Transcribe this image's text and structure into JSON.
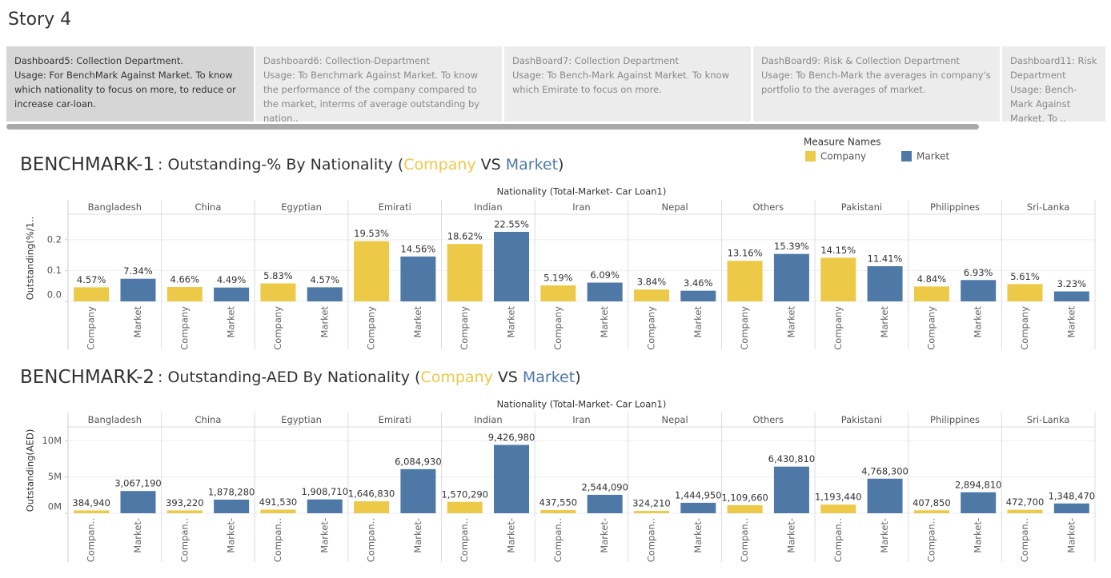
{
  "story_title": "Story 4",
  "tabs": [
    {
      "title": "Dashboard5: Collection Department.",
      "usage": "Usage: For BenchMark Against Market. To know which nationality to focus on more, to reduce or increase car-loan."
    },
    {
      "title": "Dashboard6: Collection-Department",
      "usage": "Usage: To Benchmark Against Market. To know the performance of the company compared to the market, interms of average outstanding by nation.."
    },
    {
      "title": "DashBoard7: Collection Department",
      "usage": "Usage: To Bench-Mark Against Market. To know which Emirate to focus on more."
    },
    {
      "title": "DashBoard9: Risk & Collection Department",
      "usage": "Usage: To Bench-Mark the averages in company's portfolio to the averages of market."
    },
    {
      "title": "Dashboard11: Risk Department",
      "usage": "Usage: Bench-Mark Against Market. To .."
    }
  ],
  "legend_title": "Measure Names",
  "chart_data": [
    {
      "type": "bar",
      "title": "BENCHMARK-1",
      "subtitle_prefix": ": Outstanding-% By Nationality (",
      "subtitle_join": "VS",
      "subtitle_suffix": ")",
      "x_group_label": "Nationality (Total-Market- Car Loan1)",
      "y_label": "Outstanding(%/1..",
      "categories": [
        "Bangladesh",
        "China",
        "Egyptian",
        "Emirati",
        "Indian",
        "Iran",
        "Nepal",
        "Others",
        "Pakistani",
        "Philippines",
        "Sri-Lanka"
      ],
      "sub_labels": [
        "Company",
        "Market"
      ],
      "series": [
        {
          "name": "Company",
          "color": "#edc948",
          "values": [
            0.0457,
            0.0466,
            0.0583,
            0.1953,
            0.1862,
            0.0519,
            0.0384,
            0.1316,
            0.1415,
            0.0484,
            0.0561
          ],
          "value_labels": [
            "4.57%",
            "4.66%",
            "5.83%",
            "19.53%",
            "18.62%",
            "5.19%",
            "3.84%",
            "13.16%",
            "14.15%",
            "4.84%",
            "5.61%"
          ]
        },
        {
          "name": "Market",
          "color": "#4e79a7",
          "values": [
            0.0734,
            0.0449,
            0.0457,
            0.1456,
            0.2255,
            0.0609,
            0.0346,
            0.1539,
            0.1141,
            0.0693,
            0.0323
          ],
          "value_labels": [
            "7.34%",
            "4.49%",
            "4.57%",
            "14.56%",
            "22.55%",
            "6.09%",
            "3.46%",
            "15.39%",
            "11.41%",
            "6.93%",
            "3.23%"
          ]
        }
      ],
      "ylim": [
        0,
        0.28
      ],
      "yticks": [
        {
          "value": 0,
          "label": "0.0"
        },
        0.1,
        0.2
      ],
      "grid": true
    },
    {
      "type": "bar",
      "title": "BENCHMARK-2",
      "subtitle_prefix": ": Outstanding-AED By Nationality (",
      "subtitle_join": "VS",
      "subtitle_suffix": ")",
      "x_group_label": "Nationality (Total-Market- Car Loan1)",
      "y_label": "Outstanding(AED)",
      "categories": [
        "Bangladesh",
        "China",
        "Egyptian",
        "Emirati",
        "Indian",
        "Iran",
        "Nepal",
        "Others",
        "Pakistani",
        "Philippines",
        "Sri-Lanka"
      ],
      "sub_labels": [
        "Compan..",
        "Market-"
      ],
      "series": [
        {
          "name": "Company",
          "color": "#edc948",
          "values": [
            384940,
            393220,
            491530,
            1646830,
            1570290,
            437550,
            324210,
            1109660,
            1193440,
            407850,
            472700
          ],
          "value_labels": [
            "384,940",
            "393,220",
            "491,530",
            "1,646,830",
            "1,570,290",
            "437,550",
            "324,210",
            "1,109,660",
            "1,193,440",
            "407,850",
            "472,700"
          ]
        },
        {
          "name": "Market",
          "color": "#4e79a7",
          "values": [
            3067190,
            1878280,
            1908710,
            6084930,
            9426980,
            2544090,
            1444950,
            6430810,
            4768300,
            2894810,
            1348470
          ],
          "value_labels": [
            "3,067,190",
            "1,878,280",
            "1,908,710",
            "6,084,930",
            "9,426,980",
            "2,544,090",
            "1,444,950",
            "6,430,810",
            "4,768,300",
            "2,894,810",
            "1,348,470"
          ]
        }
      ],
      "ylim": [
        0,
        11800000
      ],
      "yticks": [
        {
          "value": 0,
          "label": "0M"
        },
        {
          "value": 5000000,
          "label": "5M"
        },
        {
          "value": 10000000,
          "label": "10M"
        }
      ],
      "grid": true
    }
  ]
}
